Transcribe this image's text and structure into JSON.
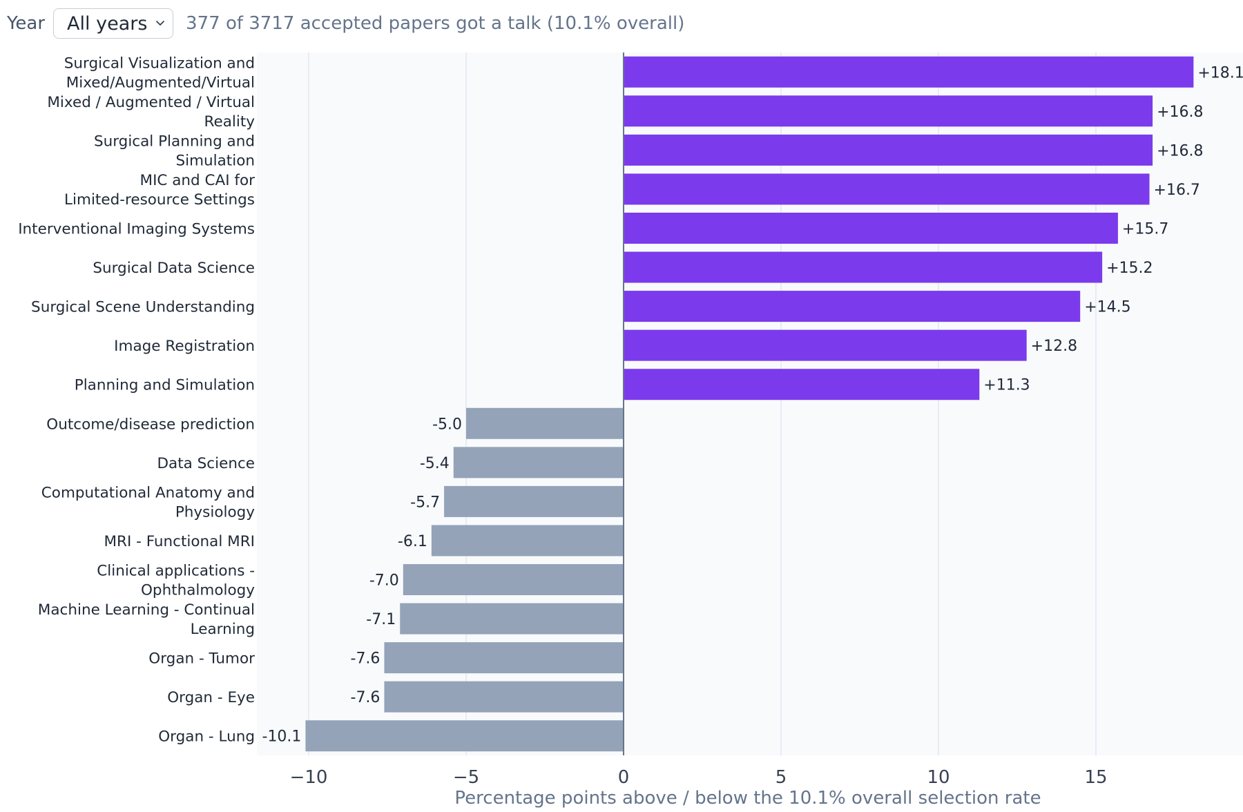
{
  "controls": {
    "year_label": "Year",
    "year_value": "All years",
    "summary": "377 of 3717 accepted papers got a talk (10.1% overall)"
  },
  "colors": {
    "positive": "#7c3aed",
    "negative": "#94a3b8",
    "plot_bg": "#f8fafc",
    "grid": "#e2e8f0",
    "zero_line": "#64748b"
  },
  "chart_data": {
    "type": "bar",
    "orientation": "horizontal",
    "categories": [
      [
        "Surgical Visualization and",
        "Mixed/Augmented/Virtual"
      ],
      [
        "Mixed / Augmented / Virtual",
        "Reality"
      ],
      [
        "Surgical Planning and",
        "Simulation"
      ],
      [
        "MIC and CAI for",
        "Limited-resource Settings"
      ],
      [
        "Interventional Imaging Systems"
      ],
      [
        "Surgical Data Science"
      ],
      [
        "Surgical Scene Understanding"
      ],
      [
        "Image Registration"
      ],
      [
        "Planning and Simulation"
      ],
      [
        "Outcome/disease prediction"
      ],
      [
        "Data Science"
      ],
      [
        "Computational Anatomy and",
        "Physiology"
      ],
      [
        "MRI - Functional MRI"
      ],
      [
        "Clinical applications -",
        "Ophthalmology"
      ],
      [
        "Machine Learning - Continual",
        "Learning"
      ],
      [
        "Organ - Tumor"
      ],
      [
        "Organ - Eye"
      ],
      [
        "Organ - Lung"
      ]
    ],
    "values": [
      18.1,
      16.8,
      16.8,
      16.7,
      15.7,
      15.2,
      14.5,
      12.8,
      11.3,
      -5.0,
      -5.4,
      -5.7,
      -6.1,
      -7.0,
      -7.1,
      -7.6,
      -7.6,
      -10.1
    ],
    "value_labels": [
      "+18.1",
      "+16.8",
      "+16.8",
      "+16.7",
      "+15.7",
      "+15.2",
      "+14.5",
      "+12.8",
      "+11.3",
      "-5.0",
      "-5.4",
      "-5.7",
      "-6.1",
      "-7.0",
      "-7.1",
      "-7.6",
      "-7.6",
      "-10.1"
    ],
    "xlim": [
      -11.7,
      19.1
    ],
    "xticks": [
      -10,
      -5,
      0,
      5,
      10,
      15
    ],
    "xtick_labels": [
      "−10",
      "−5",
      "0",
      "5",
      "10",
      "15"
    ],
    "xlabel": "Percentage points above / below the 10.1% overall selection rate",
    "grid": true
  }
}
